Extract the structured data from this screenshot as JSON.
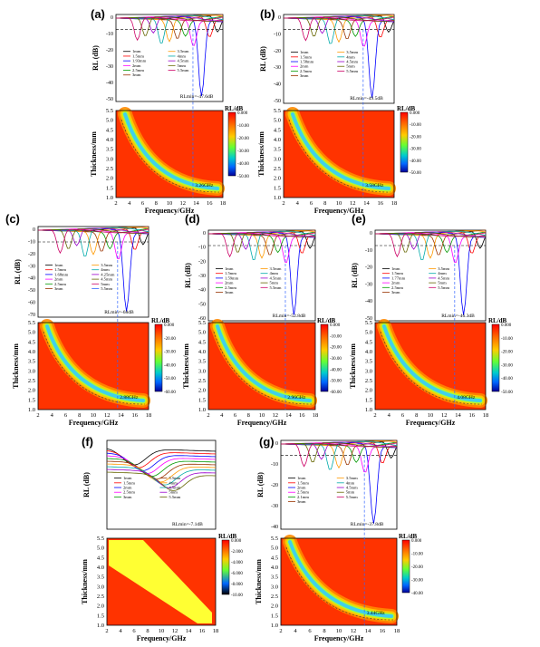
{
  "panels": [
    {
      "id": "a",
      "label": "(a)",
      "rl_plot": {
        "ylabel": "RL (dB)",
        "yticks": [
          "0",
          "-10",
          "-20",
          "-30",
          "-40",
          "-50"
        ],
        "legend": [
          "1mm",
          "1.5mm",
          "1.93mm",
          "2mm",
          "2.5mm",
          "3mm",
          "3.5mm",
          "4mm",
          "4.5mm",
          "5mm",
          "5.5mm"
        ],
        "annotation": "RLmin=-47.6dB"
      },
      "map_plot": {
        "title": "RL/dB",
        "ylabel": "Thickness/mm",
        "xlabel": "Frequency/GHz",
        "xticks": [
          "2",
          "4",
          "6",
          "8",
          "10",
          "12",
          "14",
          "16",
          "18"
        ],
        "yticks": [
          "1.0",
          "1.5",
          "2.0",
          "2.5",
          "3.0",
          "3.5",
          "4.0",
          "4.5",
          "5.0",
          "5.5"
        ],
        "colorbar_ticks": [
          "0.000",
          "-10.00",
          "-20.00",
          "-30.00",
          "-40.00",
          "-50.00"
        ],
        "annotation": "3.26GHz"
      }
    },
    {
      "id": "b",
      "label": "(b)",
      "rl_plot": {
        "ylabel": "RL (dB)",
        "yticks": [
          "0",
          "-10",
          "-20",
          "-30",
          "-40",
          "-50"
        ],
        "legend": [
          "1mm",
          "1.5mm",
          "1.58mm",
          "2mm",
          "2.5mm",
          "3mm",
          "3.5mm",
          "4mm",
          "4.5mm",
          "5mm",
          "5.5mm"
        ],
        "annotation": "RLmin=-49.5dB"
      },
      "map_plot": {
        "title": "RL/dB",
        "ylabel": "Thickness/mm",
        "xlabel": "Frequency/GHz",
        "xticks": [
          "2",
          "4",
          "6",
          "8",
          "10",
          "12",
          "14",
          "16",
          "18"
        ],
        "yticks": [
          "1.0",
          "1.5",
          "2.0",
          "2.5",
          "3.0",
          "3.5",
          "4.0",
          "4.5",
          "5.0",
          "5.5"
        ],
        "colorbar_ticks": [
          "0.000",
          "-10.00",
          "-20.00",
          "-30.00",
          "-40.00",
          "-50.00"
        ],
        "annotation": "3.58GHz"
      }
    },
    {
      "id": "c",
      "label": "(c)",
      "rl_plot": {
        "ylabel": "RL (dB)",
        "yticks": [
          "0",
          "-10",
          "-20",
          "-30",
          "-40",
          "-50",
          "-60",
          "-70"
        ],
        "legend": [
          "1mm",
          "1.5mm",
          "1.68mm",
          "2mm",
          "2.5mm",
          "3mm",
          "3.5mm",
          "4mm",
          "4.25mm",
          "4.5mm",
          "5mm",
          "5.5mm"
        ],
        "annotation": "RLmin=-68dB"
      },
      "map_plot": {
        "title": "RL/dB",
        "ylabel": "Thickness/mm",
        "xlabel": "Frequency/GHz",
        "xticks": [
          "2",
          "4",
          "6",
          "8",
          "10",
          "12",
          "14",
          "16",
          "18"
        ],
        "yticks": [
          "1.0",
          "1.5",
          "2.0",
          "2.5",
          "3.0",
          "3.5",
          "4.0",
          "4.5",
          "5.0",
          "5.5"
        ],
        "colorbar_ticks": [
          "0.000",
          "-20.00",
          "-30.00",
          "-40.00",
          "-50.00",
          "-60.00"
        ],
        "annotation": "2.88GHz"
      }
    },
    {
      "id": "d",
      "label": "(d)",
      "rl_plot": {
        "ylabel": "RL (dB)",
        "yticks": [
          "0",
          "-10",
          "-20",
          "-30",
          "-40",
          "-50",
          "-60"
        ],
        "legend": [
          "1mm",
          "1.5mm",
          "1.59mm",
          "2mm",
          "2.5mm",
          "3mm",
          "3.5mm",
          "4mm",
          "4.5mm",
          "5mm",
          "5.5mm"
        ],
        "annotation": "RLmin=-52.8dB"
      },
      "map_plot": {
        "title": "RL/dB",
        "ylabel": "Thickness/mm",
        "xlabel": "Frequency/GHz",
        "xticks": [
          "2",
          "4",
          "6",
          "8",
          "10",
          "12",
          "14",
          "16",
          "18"
        ],
        "yticks": [
          "1.0",
          "1.5",
          "2.0",
          "2.5",
          "3.0",
          "3.5",
          "4.0",
          "4.5",
          "5.0",
          "5.5"
        ],
        "colorbar_ticks": [
          "0.000",
          "-10.00",
          "-20.00",
          "-30.00",
          "-40.00",
          "-50.00",
          "-60.00"
        ],
        "annotation": "2.96GHz"
      }
    },
    {
      "id": "e",
      "label": "(e)",
      "rl_plot": {
        "ylabel": "RL (dB)",
        "yticks": [
          "0",
          "-10",
          "-20",
          "-30",
          "-40",
          "-50"
        ],
        "legend": [
          "1mm",
          "1.5mm",
          "1.77mm",
          "2mm",
          "2.5mm",
          "3mm",
          "3.5mm",
          "4mm",
          "4.5mm",
          "5mm",
          "5.5mm"
        ],
        "annotation": "RLmin=-46.3dB"
      },
      "map_plot": {
        "title": "RL/dB",
        "ylabel": "Thickness/mm",
        "xlabel": "Frequency/GHz",
        "xticks": [
          "2",
          "4",
          "6",
          "8",
          "10",
          "12",
          "14",
          "16",
          "18"
        ],
        "yticks": [
          "1.0",
          "1.5",
          "2.0",
          "2.5",
          "3.0",
          "3.5",
          "4.0",
          "4.5",
          "5.0",
          "5.5"
        ],
        "colorbar_ticks": [
          "0.000",
          "-10.00",
          "-20.00",
          "-30.00",
          "-40.00",
          "-50.00"
        ],
        "annotation": "4.08GHz"
      }
    },
    {
      "id": "f",
      "label": "(f)",
      "rl_plot": {
        "ylabel": "RL (dB)",
        "yticks": [],
        "legend": [
          "1mm",
          "1.5mm",
          "2mm",
          "2.5mm",
          "3mm",
          "3.5mm",
          "4mm",
          "4.5mm",
          "5mm",
          "5.5mm"
        ],
        "annotation": "RLmin=-7.1dB"
      },
      "map_plot": {
        "title": "RL/dB",
        "ylabel": "Thickness/mm",
        "xlabel": "Frequency/GHz",
        "xticks": [
          "2",
          "4",
          "6",
          "8",
          "10",
          "12",
          "14",
          "16",
          "18"
        ],
        "yticks": [
          "1.0",
          "1.5",
          "2.0",
          "2.5",
          "3.0",
          "3.5",
          "4.0",
          "4.5",
          "5.0",
          "5.5"
        ],
        "colorbar_ticks": [
          "0.000",
          "-2.000",
          "-4.000",
          "-6.000",
          "-8.000",
          "-10.00"
        ],
        "annotation": ""
      }
    },
    {
      "id": "g",
      "label": "(g)",
      "rl_plot": {
        "ylabel": "RL (dB)",
        "yticks": [
          "0",
          "-10",
          "-20",
          "-30",
          "-40"
        ],
        "legend": [
          "1mm",
          "1.5mm",
          "2mm",
          "2.5mm",
          "2.1mm",
          "3mm",
          "3.5mm",
          "4mm",
          "4.5mm",
          "5mm",
          "5.5mm"
        ],
        "annotation": "RLmin=-37.8dB"
      },
      "map_plot": {
        "title": "RL/dB",
        "ylabel": "Thickness/mm",
        "xlabel": "Frequency/GHz",
        "xticks": [
          "2",
          "4",
          "6",
          "8",
          "10",
          "12",
          "14",
          "16",
          "18"
        ],
        "yticks": [
          "1.0",
          "1.5",
          "2.0",
          "2.5",
          "3.0",
          "3.5",
          "4.0",
          "4.5",
          "5.0",
          "5.5"
        ],
        "colorbar_ticks": [
          "0.000",
          "-10.00",
          "-20.00",
          "-30.00",
          "-40.00"
        ],
        "annotation": "3.44GHz"
      }
    }
  ],
  "chart_data": [
    {
      "panel": "a",
      "type": "line",
      "xlabel": "",
      "ylabel": "RL (dB)",
      "xlim": [
        2,
        18
      ],
      "ylim": [
        -55,
        0
      ],
      "reference_line": -10,
      "series": [
        {
          "name": "1.93mm",
          "x": [
            2,
            10,
            14,
            16,
            17,
            17.8
          ],
          "y": [
            -1,
            -3,
            -8,
            -14,
            -30,
            -47.6
          ]
        }
      ]
    },
    {
      "panel": "a",
      "type": "heatmap",
      "xlabel": "Frequency/GHz",
      "ylabel": "Thickness/mm",
      "xlim": [
        2,
        18
      ],
      "ylim": [
        1,
        5.5
      ],
      "zlim": [
        -50,
        0
      ]
    },
    {
      "panel": "b",
      "type": "line",
      "xlabel": "",
      "ylabel": "RL (dB)",
      "xlim": [
        2,
        18
      ],
      "ylim": [
        -55,
        0
      ],
      "reference_line": -10,
      "series": [
        {
          "name": "1.58mm",
          "x": [
            2,
            10,
            14,
            15.5,
            16,
            17,
            18
          ],
          "y": [
            -1,
            -3,
            -10,
            -49.5,
            -30,
            -12,
            -8
          ]
        }
      ]
    },
    {
      "panel": "b",
      "type": "heatmap",
      "xlabel": "Frequency/GHz",
      "ylabel": "Thickness/mm",
      "xlim": [
        2,
        18
      ],
      "ylim": [
        1,
        5.5
      ],
      "zlim": [
        -50,
        0
      ]
    },
    {
      "panel": "c",
      "type": "line",
      "xlabel": "",
      "ylabel": "RL (dB)",
      "xlim": [
        2,
        18
      ],
      "ylim": [
        -70,
        0
      ],
      "reference_line": -10,
      "series": [
        {
          "name": "1.68mm",
          "x": [
            2,
            10,
            13,
            14.5,
            15.2,
            16,
            18
          ],
          "y": [
            -1,
            -3,
            -8,
            -20,
            -68,
            -25,
            -10
          ]
        }
      ]
    },
    {
      "panel": "c",
      "type": "heatmap",
      "xlabel": "Frequency/GHz",
      "ylabel": "Thickness/mm",
      "xlim": [
        2,
        18
      ],
      "ylim": [
        1,
        5.5
      ],
      "zlim": [
        -60,
        0
      ]
    },
    {
      "panel": "d",
      "type": "line",
      "xlabel": "",
      "ylabel": "RL (dB)",
      "xlim": [
        2,
        18
      ],
      "ylim": [
        -60,
        0
      ],
      "reference_line": -10,
      "series": [
        {
          "name": "1.59mm",
          "x": [
            2,
            10,
            13,
            14.5,
            15.3,
            16,
            18
          ],
          "y": [
            -1,
            -3,
            -8,
            -20,
            -52.8,
            -25,
            -12
          ]
        }
      ]
    },
    {
      "panel": "d",
      "type": "heatmap",
      "xlabel": "Frequency/GHz",
      "ylabel": "Thickness/mm",
      "xlim": [
        2,
        18
      ],
      "ylim": [
        1,
        5.5
      ],
      "zlim": [
        -60,
        0
      ]
    },
    {
      "panel": "e",
      "type": "line",
      "xlabel": "",
      "ylabel": "RL (dB)",
      "xlim": [
        2,
        18
      ],
      "ylim": [
        -50,
        0
      ],
      "reference_line": -10,
      "series": [
        {
          "name": "1.77mm",
          "x": [
            2,
            10,
            13,
            14.5,
            15.3,
            16,
            18
          ],
          "y": [
            -1,
            -3,
            -8,
            -20,
            -46.3,
            -25,
            -12
          ]
        }
      ]
    },
    {
      "panel": "e",
      "type": "heatmap",
      "xlabel": "Frequency/GHz",
      "ylabel": "Thickness/mm",
      "xlim": [
        2,
        18
      ],
      "ylim": [
        1,
        5.5
      ],
      "zlim": [
        -50,
        0
      ]
    },
    {
      "panel": "f",
      "type": "line",
      "xlabel": "",
      "ylabel": "RL (dB)",
      "xlim": [
        2,
        18
      ],
      "ylim": [
        -8,
        0
      ],
      "series": [
        {
          "name": "5.5mm",
          "x": [
            2,
            6,
            8,
            10,
            12,
            14,
            16,
            18
          ],
          "y": [
            -1,
            -3,
            -5,
            -7.1,
            -5,
            -3,
            -4,
            -6
          ]
        }
      ]
    },
    {
      "panel": "f",
      "type": "heatmap",
      "xlabel": "Frequency/GHz",
      "ylabel": "Thickness/mm",
      "xlim": [
        2,
        18
      ],
      "ylim": [
        1,
        5.5
      ],
      "zlim": [
        -10,
        0
      ]
    },
    {
      "panel": "g",
      "type": "line",
      "xlabel": "",
      "ylabel": "RL (dB)",
      "xlim": [
        2,
        18
      ],
      "ylim": [
        -40,
        0
      ],
      "reference_line": -10,
      "series": [
        {
          "name": "3mm",
          "x": [
            2,
            6,
            8,
            9.5,
            10.5,
            12,
            14,
            18
          ],
          "y": [
            -1,
            -5,
            -15,
            -37.8,
            -20,
            -12,
            -8,
            -15
          ]
        }
      ]
    },
    {
      "panel": "g",
      "type": "heatmap",
      "xlabel": "Frequency/GHz",
      "ylabel": "Thickness/mm",
      "xlim": [
        2,
        18
      ],
      "ylim": [
        1,
        5.5
      ],
      "zlim": [
        -40,
        0
      ]
    }
  ]
}
